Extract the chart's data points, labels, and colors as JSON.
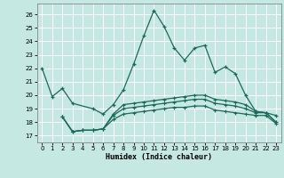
{
  "title": "",
  "xlabel": "Humidex (Indice chaleur)",
  "xlim": [
    -0.5,
    23.5
  ],
  "ylim": [
    16.5,
    26.8
  ],
  "yticks": [
    17,
    18,
    19,
    20,
    21,
    22,
    23,
    24,
    25,
    26
  ],
  "xticks": [
    0,
    1,
    2,
    3,
    4,
    5,
    6,
    7,
    8,
    9,
    10,
    11,
    12,
    13,
    14,
    15,
    16,
    17,
    18,
    19,
    20,
    21,
    22,
    23
  ],
  "bg_color": "#c5e8e2",
  "grid_color": "#ffffff",
  "line_color": "#1a6b5a",
  "series": {
    "line_main": {
      "x": [
        0,
        1,
        2,
        3,
        5,
        6,
        7,
        8,
        9,
        10,
        11,
        12,
        13,
        14,
        15,
        16,
        17,
        18,
        19,
        20,
        21,
        22,
        23
      ],
      "y": [
        22.0,
        19.9,
        20.5,
        19.4,
        19.0,
        18.6,
        19.3,
        20.4,
        22.3,
        24.4,
        26.3,
        25.1,
        23.5,
        22.6,
        23.5,
        23.7,
        21.7,
        22.1,
        21.6,
        20.0,
        18.8,
        18.7,
        18.5
      ]
    },
    "line3": {
      "x": [
        2,
        3,
        4,
        5,
        6,
        7,
        8,
        9,
        10,
        11,
        12,
        13,
        14,
        15,
        16,
        17,
        18,
        19,
        20,
        21,
        22,
        23
      ],
      "y": [
        18.4,
        17.3,
        17.4,
        17.4,
        17.5,
        18.6,
        19.3,
        19.4,
        19.5,
        19.6,
        19.7,
        19.8,
        19.9,
        20.0,
        20.0,
        19.7,
        19.6,
        19.5,
        19.3,
        18.8,
        18.7,
        18.0
      ]
    },
    "line4": {
      "x": [
        2,
        3,
        4,
        5,
        6,
        7,
        8,
        9,
        10,
        11,
        12,
        13,
        14,
        15,
        16,
        17,
        18,
        19,
        20,
        21,
        22,
        23
      ],
      "y": [
        18.4,
        17.3,
        17.4,
        17.4,
        17.5,
        18.5,
        19.0,
        19.1,
        19.2,
        19.3,
        19.4,
        19.5,
        19.6,
        19.7,
        19.7,
        19.4,
        19.3,
        19.2,
        19.0,
        18.7,
        18.7,
        18.0
      ]
    },
    "line5": {
      "x": [
        2,
        3,
        4,
        5,
        6,
        7,
        8,
        9,
        10,
        11,
        12,
        13,
        14,
        15,
        16,
        17,
        18,
        19,
        20,
        21,
        22,
        23
      ],
      "y": [
        18.4,
        17.3,
        17.4,
        17.4,
        17.5,
        18.2,
        18.6,
        18.7,
        18.8,
        18.9,
        19.0,
        19.1,
        19.1,
        19.2,
        19.2,
        18.9,
        18.8,
        18.7,
        18.6,
        18.5,
        18.5,
        17.9
      ]
    }
  }
}
